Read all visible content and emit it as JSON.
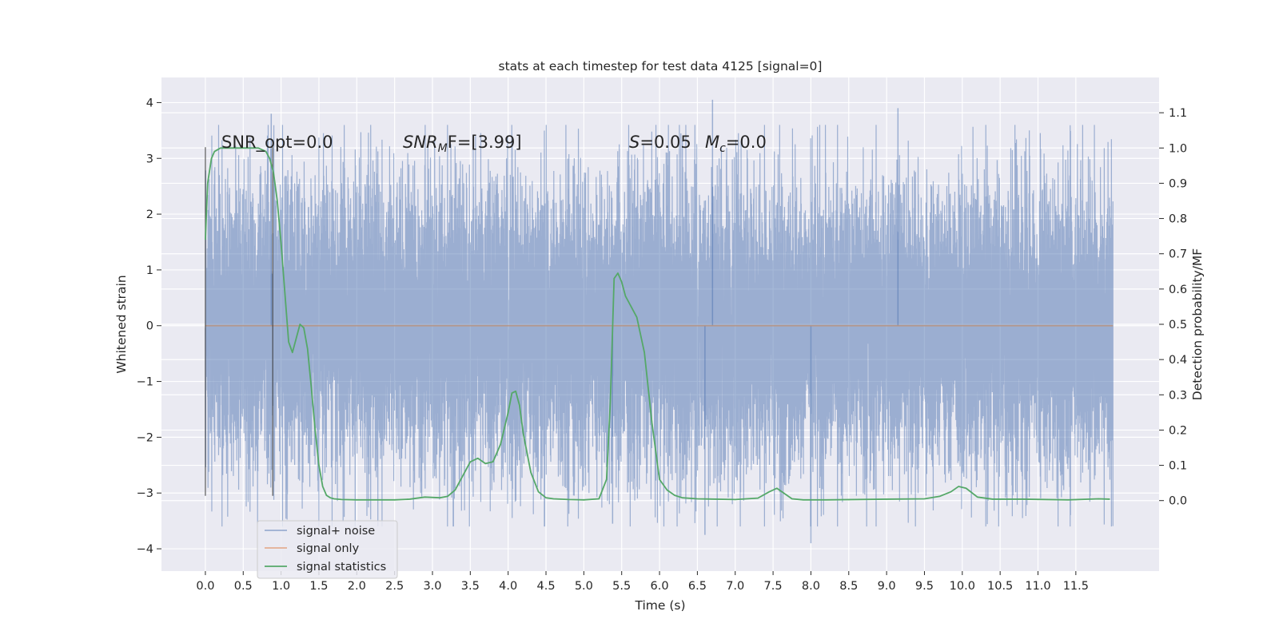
{
  "chart_data": {
    "type": "line",
    "title": "stats at each timestep for test data 4125 [signal=0]",
    "xlabel": "Time (s)",
    "ylabel": "Whitened strain",
    "y2label": "Detection probability/MF",
    "xlim": [
      -0.58,
      12.6
    ],
    "ylim": [
      -4.4,
      4.45
    ],
    "y2lim": [
      -0.2,
      1.2
    ],
    "x_ticks": [
      0.0,
      0.5,
      1.0,
      1.5,
      2.0,
      2.5,
      3.0,
      3.5,
      4.0,
      4.5,
      5.0,
      5.5,
      6.0,
      6.5,
      7.0,
      7.5,
      8.0,
      8.5,
      9.0,
      9.5,
      10.0,
      10.5,
      11.0,
      11.5
    ],
    "x_tick_labels": [
      "0.0",
      "0.5",
      "1.0",
      "1.5",
      "2.0",
      "2.5",
      "3.0",
      "3.5",
      "4.0",
      "4.5",
      "5.0",
      "5.5",
      "6.0",
      "6.5",
      "7.0",
      "7.5",
      "8.0",
      "8.5",
      "9.0",
      "9.5",
      "10.0",
      "10.5",
      "11.0",
      "11.5"
    ],
    "y_ticks": [
      -4,
      -3,
      -2,
      -1,
      0,
      1,
      2,
      3,
      4
    ],
    "y_tick_labels": [
      "−4",
      "−3",
      "−2",
      "−1",
      "0",
      "1",
      "2",
      "3",
      "4"
    ],
    "y2_ticks": [
      0.0,
      0.1,
      0.2,
      0.3,
      0.4,
      0.5,
      0.6,
      0.7,
      0.8,
      0.9,
      1.0,
      1.1
    ],
    "y2_tick_labels": [
      "0.0",
      "0.1",
      "0.2",
      "0.3",
      "0.4",
      "0.5",
      "0.6",
      "0.7",
      "0.8",
      "0.9",
      "1.0",
      "1.1"
    ],
    "grid": true,
    "background": "#eaeaf2",
    "annotations": {
      "snr_opt": "SNR_opt=0.0",
      "snr_mf_base": "SNR",
      "snr_mf_sub": "M",
      "snr_mf_tail": "F=[3.99]",
      "s_var": "S",
      "s_value": "=0.05",
      "mc_var": "M",
      "mc_sub": "c",
      "mc_value": "=0.0"
    },
    "vlines": [
      0.0,
      0.89
    ],
    "vline_range": [
      -3.05,
      3.2
    ],
    "legend": {
      "placement": "lower-left",
      "entries": [
        {
          "label": "signal+ noise",
          "color": "#4c72b0"
        },
        {
          "label": "signal only",
          "color": "#dd8452"
        },
        {
          "label": "signal statistics",
          "color": "#55a868"
        }
      ]
    },
    "series": [
      {
        "name": "signal+ noise",
        "color": "#4c72b0",
        "axis": "left",
        "x_range": [
          0.0,
          11.99
        ],
        "typical_range": [
          -1.75,
          1.9
        ],
        "extremes": [
          [
            0.87,
            3.8
          ],
          [
            6.7,
            4.05
          ],
          [
            9.15,
            3.9
          ],
          [
            6.6,
            -3.75
          ],
          [
            8.0,
            -3.9
          ],
          [
            5.38,
            -3.55
          ]
        ]
      },
      {
        "name": "signal only",
        "color": "#dd8452",
        "axis": "left",
        "x": [
          0.0,
          11.99
        ],
        "y": [
          0.0,
          0.0
        ]
      },
      {
        "name": "signal statistics",
        "color": "#55a868",
        "axis": "right",
        "x": [
          0.0,
          0.03,
          0.08,
          0.12,
          0.2,
          0.3,
          0.4,
          0.5,
          0.6,
          0.7,
          0.8,
          0.85,
          0.9,
          0.95,
          1.0,
          1.05,
          1.1,
          1.15,
          1.2,
          1.25,
          1.3,
          1.35,
          1.4,
          1.45,
          1.5,
          1.55,
          1.6,
          1.65,
          1.7,
          1.8,
          2.0,
          2.5,
          2.7,
          2.9,
          3.1,
          3.2,
          3.3,
          3.4,
          3.5,
          3.6,
          3.7,
          3.8,
          3.9,
          4.0,
          4.05,
          4.1,
          4.15,
          4.2,
          4.3,
          4.4,
          4.5,
          4.6,
          4.8,
          5.0,
          5.2,
          5.3,
          5.35,
          5.4,
          5.45,
          5.5,
          5.55,
          5.6,
          5.7,
          5.8,
          5.9,
          6.0,
          6.1,
          6.2,
          6.3,
          6.5,
          7.0,
          7.3,
          7.45,
          7.55,
          7.65,
          7.75,
          7.9,
          8.2,
          9.0,
          9.5,
          9.7,
          9.85,
          9.95,
          10.05,
          10.2,
          10.4,
          10.8,
          11.4,
          11.8,
          11.95
        ],
        "y": [
          0.74,
          0.9,
          0.97,
          0.99,
          1.0,
          1.0,
          1.0,
          1.0,
          1.0,
          1.0,
          0.99,
          0.97,
          0.93,
          0.85,
          0.73,
          0.59,
          0.45,
          0.42,
          0.46,
          0.5,
          0.49,
          0.43,
          0.32,
          0.2,
          0.1,
          0.04,
          0.015,
          0.008,
          0.005,
          0.003,
          0.002,
          0.002,
          0.004,
          0.01,
          0.008,
          0.012,
          0.03,
          0.07,
          0.11,
          0.12,
          0.105,
          0.11,
          0.16,
          0.25,
          0.305,
          0.31,
          0.27,
          0.19,
          0.08,
          0.025,
          0.008,
          0.005,
          0.003,
          0.002,
          0.005,
          0.06,
          0.28,
          0.63,
          0.645,
          0.62,
          0.58,
          0.56,
          0.52,
          0.42,
          0.22,
          0.06,
          0.03,
          0.015,
          0.008,
          0.005,
          0.003,
          0.007,
          0.025,
          0.035,
          0.02,
          0.005,
          0.002,
          0.002,
          0.004,
          0.005,
          0.012,
          0.025,
          0.04,
          0.035,
          0.01,
          0.004,
          0.004,
          0.002,
          0.005,
          0.004
        ]
      }
    ]
  }
}
